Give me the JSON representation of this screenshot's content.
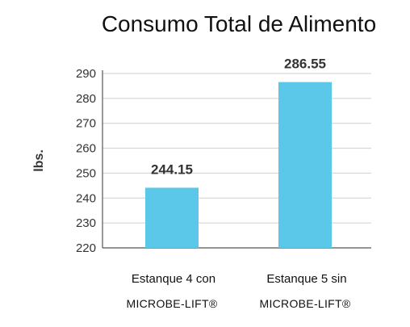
{
  "chart_data": {
    "type": "bar",
    "title": "Consumo Total de Alimento",
    "ylabel": "lbs.",
    "xlabel": "",
    "ylim": [
      220,
      290
    ],
    "yticks": [
      220,
      230,
      240,
      250,
      260,
      270,
      280,
      290
    ],
    "grid": true,
    "legend": "none",
    "bar_color": "#5bc8ea",
    "categories": [
      {
        "line1": "Estanque 4 con",
        "line2": "MICROBE-LIFT®"
      },
      {
        "line1": "Estanque 5 sin",
        "line2": "MICROBE-LIFT®"
      }
    ],
    "values": [
      244.15,
      286.55
    ],
    "value_labels": [
      "244.15",
      "286.55"
    ]
  }
}
